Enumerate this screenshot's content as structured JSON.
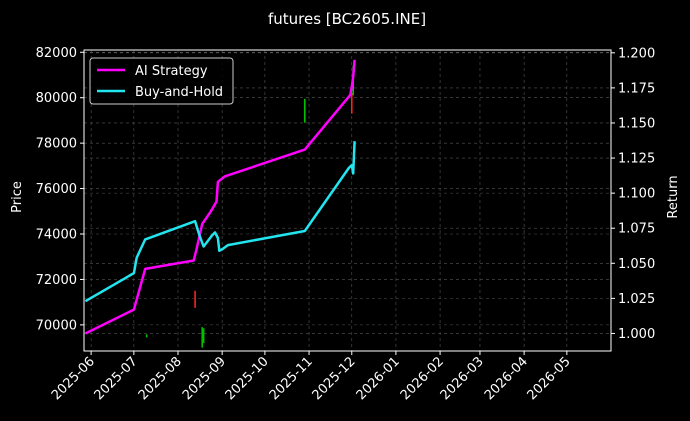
{
  "chart_data": {
    "type": "line",
    "title": "futures [BC2605.INE]",
    "xlabel": "",
    "ylabel": "Price",
    "y2label": "Return",
    "xlim": [
      "2025-05-27",
      "2026-06-01"
    ],
    "ylim": [
      68850,
      82100
    ],
    "y2lim": [
      0.9875,
      1.202
    ],
    "grid": true,
    "legend_position": "top-left",
    "x_ticks": [
      "2025-06",
      "2025-07",
      "2025-08",
      "2025-09",
      "2025-10",
      "2025-11",
      "2025-12",
      "2026-01",
      "2026-02",
      "2026-03",
      "2026-04",
      "2026-05"
    ],
    "y_ticks": [
      70000,
      72000,
      74000,
      76000,
      78000,
      80000,
      82000
    ],
    "y_tick_labels": [
      "70000",
      "72000",
      "74000",
      "76000",
      "78000",
      "80000",
      "82000"
    ],
    "y2_ticks": [
      1.0,
      1.025,
      1.05,
      1.075,
      1.1,
      1.125,
      1.15,
      1.175,
      1.2
    ],
    "y2_tick_labels": [
      "1.000",
      "1.025",
      "1.050",
      "1.075",
      "1.100",
      "1.125",
      "1.150",
      "1.175",
      "1.200"
    ],
    "colors": {
      "background": "#000000",
      "axis": "#ffffff",
      "grid": "#555555",
      "up": "#00c000",
      "down": "#ff2020"
    },
    "series": [
      {
        "name": "AI Strategy",
        "axis": "right",
        "color": "#ff00ff",
        "points": [
          [
            "2025-05-28",
            1.0
          ],
          [
            "2025-07-01",
            1.017
          ],
          [
            "2025-07-09",
            1.046
          ],
          [
            "2025-08-12",
            1.052
          ],
          [
            "2025-08-14",
            1.06
          ],
          [
            "2025-08-18",
            1.078
          ],
          [
            "2025-08-24",
            1.087
          ],
          [
            "2025-08-28",
            1.094
          ],
          [
            "2025-08-29",
            1.108
          ],
          [
            "2025-09-03",
            1.112
          ],
          [
            "2025-10-29",
            1.131
          ],
          [
            "2025-11-30",
            1.17
          ],
          [
            "2025-12-01",
            1.176
          ],
          [
            "2025-12-02",
            1.183
          ],
          [
            "2025-12-03",
            1.195
          ]
        ]
      },
      {
        "name": "Buy-and-Hold",
        "axis": "right",
        "color": "#22e5f0",
        "points": [
          [
            "2025-05-28",
            1.023
          ],
          [
            "2025-07-01",
            1.043
          ],
          [
            "2025-07-03",
            1.054
          ],
          [
            "2025-07-09",
            1.067
          ],
          [
            "2025-08-13",
            1.08
          ],
          [
            "2025-08-16",
            1.07
          ],
          [
            "2025-08-19",
            1.062
          ],
          [
            "2025-08-25",
            1.07
          ],
          [
            "2025-08-27",
            1.072
          ],
          [
            "2025-08-29",
            1.068
          ],
          [
            "2025-08-30",
            1.059
          ],
          [
            "2025-09-01",
            1.06
          ],
          [
            "2025-09-05",
            1.063
          ],
          [
            "2025-10-29",
            1.073
          ],
          [
            "2025-11-29",
            1.118
          ],
          [
            "2025-12-01",
            1.12
          ],
          [
            "2025-12-02",
            1.114
          ],
          [
            "2025-12-03",
            1.137
          ]
        ]
      }
    ],
    "candles": [
      {
        "date": "2025-07-10",
        "low": 69450,
        "high": 69580,
        "color": "up"
      },
      {
        "date": "2025-08-13",
        "low": 70750,
        "high": 71500,
        "color": "down"
      },
      {
        "date": "2025-08-18",
        "low": 69000,
        "high": 69900,
        "color": "up"
      },
      {
        "date": "2025-08-19",
        "low": 69200,
        "high": 69850,
        "color": "up"
      },
      {
        "date": "2025-10-29",
        "low": 78900,
        "high": 79950,
        "color": "up"
      },
      {
        "date": "2025-12-01",
        "low": 79300,
        "high": 80200,
        "color": "down"
      },
      {
        "date": "2025-12-02",
        "low": 80100,
        "high": 81400,
        "color": "up"
      }
    ]
  }
}
